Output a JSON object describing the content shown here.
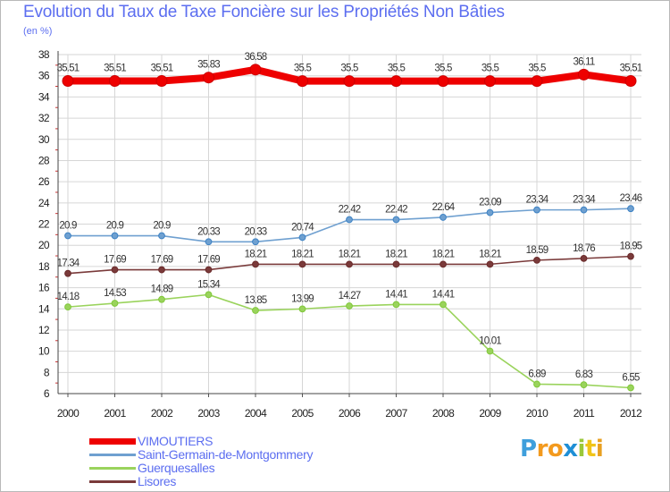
{
  "header": {
    "title": "Evolution du Taux de Taxe Foncière sur les Propriétés Non Bâties",
    "subtitle": "(en %)"
  },
  "logo": {
    "letters": [
      "P",
      "r",
      "o",
      "x",
      "i",
      "t",
      "i"
    ],
    "colors": [
      "#3f9fdc",
      "#f39a1e",
      "#f39a1e",
      "#1f8fd6",
      "#9bc83a",
      "#f0c419",
      "#e8a020"
    ]
  },
  "chart_data": {
    "type": "line",
    "title": "Evolution du Taux de Taxe Foncière sur les Propriétés Non Bâties",
    "ylabel": "(en %)",
    "xlabel": "",
    "categories": [
      "2000",
      "2001",
      "2002",
      "2003",
      "2004",
      "2005",
      "2006",
      "2007",
      "2008",
      "2009",
      "2010",
      "2011",
      "2012"
    ],
    "ylim": [
      6,
      38
    ],
    "yticks": [
      6,
      8,
      10,
      12,
      14,
      16,
      18,
      20,
      22,
      24,
      26,
      28,
      30,
      32,
      34,
      36,
      38
    ],
    "grid": true,
    "legend_position": "bottom-left",
    "series": [
      {
        "name": "VIMOUTIERS",
        "color": "#ee0000",
        "emphasis": "bold",
        "values": [
          35.51,
          35.51,
          35.51,
          35.83,
          36.58,
          35.5,
          35.5,
          35.5,
          35.5,
          35.5,
          35.5,
          36.11,
          35.51
        ],
        "labels": [
          "35.51",
          "35.51",
          "35.51",
          "35.83",
          "36.58",
          "35.5",
          "35.5",
          "35.5",
          "35.5",
          "35.5",
          "35.5",
          "36.11",
          "35.51"
        ]
      },
      {
        "name": "Saint-Germain-de-Montgommery",
        "color": "#6fa0d0",
        "marker": "#3d82c4",
        "values": [
          20.9,
          20.9,
          20.9,
          20.33,
          20.33,
          20.74,
          22.42,
          22.42,
          22.64,
          23.09,
          23.34,
          23.34,
          23.46
        ],
        "labels": [
          "20.9",
          "20.9",
          "20.9",
          "20.33",
          "20.33",
          "20.74",
          "22.42",
          "22.42",
          "22.64",
          "23.09",
          "23.34",
          "23.34",
          "23.46"
        ]
      },
      {
        "name": "Guerquesalles",
        "color": "#9ad35c",
        "marker": "#80c83a",
        "values": [
          14.18,
          14.53,
          14.89,
          15.34,
          13.85,
          13.99,
          14.27,
          14.41,
          14.41,
          10.01,
          6.89,
          6.83,
          6.55
        ],
        "labels": [
          "14.18",
          "14.53",
          "14.89",
          "15.34",
          "13.85",
          "13.99",
          "14.27",
          "14.41",
          "14.41",
          "10.01",
          "6.89",
          "6.83",
          "6.55"
        ]
      },
      {
        "name": "Lisores",
        "color": "#7a3a3a",
        "marker": "#6a2a2a",
        "values": [
          17.34,
          17.69,
          17.69,
          17.69,
          18.21,
          18.21,
          18.21,
          18.21,
          18.21,
          18.21,
          18.59,
          18.76,
          18.95
        ],
        "labels": [
          "17.34",
          "17.69",
          "17.69",
          "17.69",
          "18.21",
          "18.21",
          "18.21",
          "18.21",
          "18.21",
          "18.21",
          "18.59",
          "18.76",
          "18.95"
        ]
      }
    ]
  }
}
